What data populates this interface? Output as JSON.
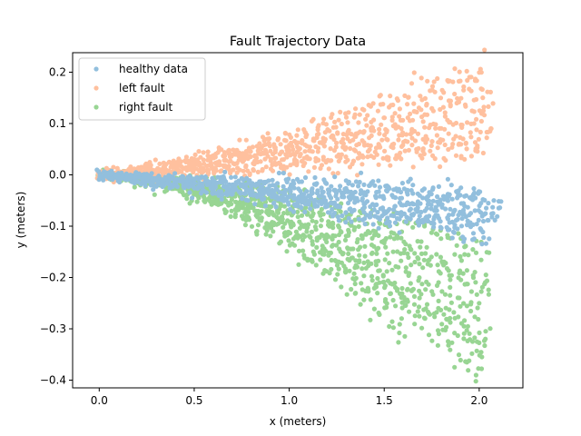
{
  "chart_data": {
    "type": "scatter",
    "title": "Fault Trajectory Data",
    "xlabel": "x (meters)",
    "ylabel": "y (meters)",
    "xlim": [
      -0.14,
      2.23
    ],
    "ylim": [
      -0.415,
      0.238
    ],
    "xticks": [
      0.0,
      0.5,
      1.0,
      1.5,
      2.0
    ],
    "xtick_labels": [
      "0.0",
      "0.5",
      "1.0",
      "1.5",
      "2.0"
    ],
    "yticks": [
      0.2,
      0.1,
      0.0,
      -0.1,
      -0.2,
      -0.3,
      -0.4
    ],
    "ytick_labels": [
      "0.2",
      "0.1",
      "0.0",
      "−0.1",
      "−0.2",
      "−0.3",
      "−0.4"
    ],
    "grid": false,
    "legend_position": "top-left",
    "series": [
      {
        "name": "healthy data",
        "color": "#92bfdd",
        "bands": [
          {
            "x_end": 2.11,
            "y_end": -0.055
          },
          {
            "x_end": 2.1,
            "y_end": -0.075
          },
          {
            "x_end": 2.08,
            "y_end": -0.085
          },
          {
            "x_end": 2.05,
            "y_end": -0.1
          },
          {
            "x_end": 2.06,
            "y_end": -0.112
          },
          {
            "x_end": 2.0,
            "y_end": -0.04
          }
        ]
      },
      {
        "name": "left fault",
        "color": "#ffc09e",
        "bands": [
          {
            "x_end": 2.03,
            "y_end": 0.207
          },
          {
            "x_end": 2.05,
            "y_end": 0.165
          },
          {
            "x_end": 2.06,
            "y_end": 0.135
          },
          {
            "x_end": 2.05,
            "y_end": 0.115
          },
          {
            "x_end": 2.07,
            "y_end": 0.072
          },
          {
            "x_end": 2.04,
            "y_end": 0.05
          }
        ]
      },
      {
        "name": "right fault",
        "color": "#98d593",
        "bands": [
          {
            "x_end": 2.05,
            "y_end": -0.155
          },
          {
            "x_end": 2.05,
            "y_end": -0.21
          },
          {
            "x_end": 2.05,
            "y_end": -0.23
          },
          {
            "x_end": 2.05,
            "y_end": -0.29
          },
          {
            "x_end": 2.02,
            "y_end": -0.33
          },
          {
            "x_end": 2.04,
            "y_end": -0.35
          },
          {
            "x_end": 2.01,
            "y_end": -0.385
          },
          {
            "x_end": 1.6,
            "y_end": -0.305
          }
        ]
      }
    ]
  }
}
